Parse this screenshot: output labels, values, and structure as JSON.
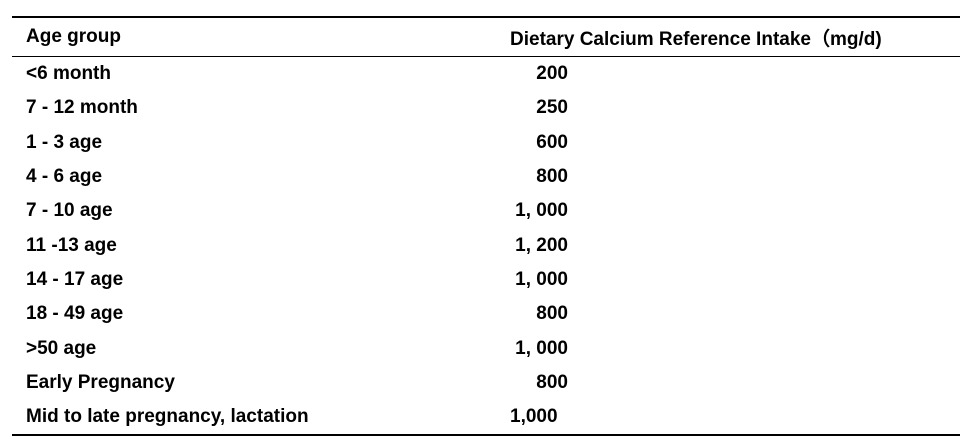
{
  "table": {
    "headers": [
      "Age group",
      "Dietary Calcium Reference Intake（mg/d)"
    ],
    "rows": [
      {
        "age": "<6 month",
        "intake": "200"
      },
      {
        "age": "7 - 12 month",
        "intake": "250"
      },
      {
        "age": "1 - 3 age",
        "intake": "600"
      },
      {
        "age": "4 - 6 age",
        "intake": "800"
      },
      {
        "age": "7 - 10 age",
        "intake": "1, 000"
      },
      {
        "age": "11 -13 age",
        "intake": "1, 200"
      },
      {
        "age": "14 - 17 age",
        "intake": "1, 000"
      },
      {
        "age": "18 - 49 age",
        "intake": "800"
      },
      {
        "age": ">50 age",
        "intake": "1, 000"
      },
      {
        "age": "Early Pregnancy",
        "intake": "800"
      },
      {
        "age": "Mid to late pregnancy, lactation",
        "intake": "1,000"
      }
    ]
  }
}
